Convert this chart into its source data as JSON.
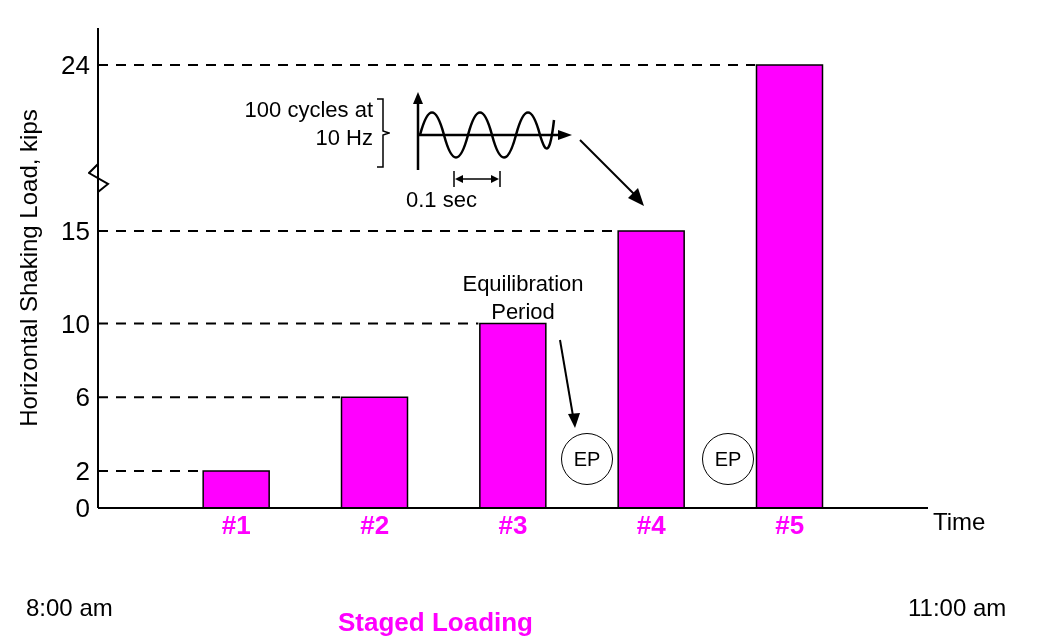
{
  "chart_data": {
    "type": "bar",
    "ylabel": "Horizontal Shaking Load, kips",
    "xlabel": "Time",
    "categories": [
      "#1",
      "#2",
      "#3",
      "#4",
      "#5"
    ],
    "values": [
      2,
      6,
      10,
      15,
      24
    ],
    "color": "#ff00ff",
    "ylim": [
      0,
      26
    ],
    "yticks": [
      0,
      2,
      6,
      10,
      15,
      24
    ],
    "ref_lines": [
      {
        "axis": "y",
        "value": 2,
        "color": "#000000",
        "line_style": "dashed"
      },
      {
        "axis": "y",
        "value": 6,
        "color": "#000000",
        "line_style": "dashed"
      },
      {
        "axis": "y",
        "value": 10,
        "color": "#000000",
        "line_style": "dashed"
      },
      {
        "axis": "y",
        "value": 15,
        "color": "#000000",
        "line_style": "dashed"
      },
      {
        "axis": "y",
        "value": 24,
        "color": "#000000",
        "line_style": "dashed"
      }
    ],
    "annotations": [
      "100 cycles at 10 Hz",
      "0.1 sec",
      "Equilibration Period",
      "EP",
      "EP",
      "8:00 am",
      "11:00 am",
      "Staged Loading"
    ]
  }
}
